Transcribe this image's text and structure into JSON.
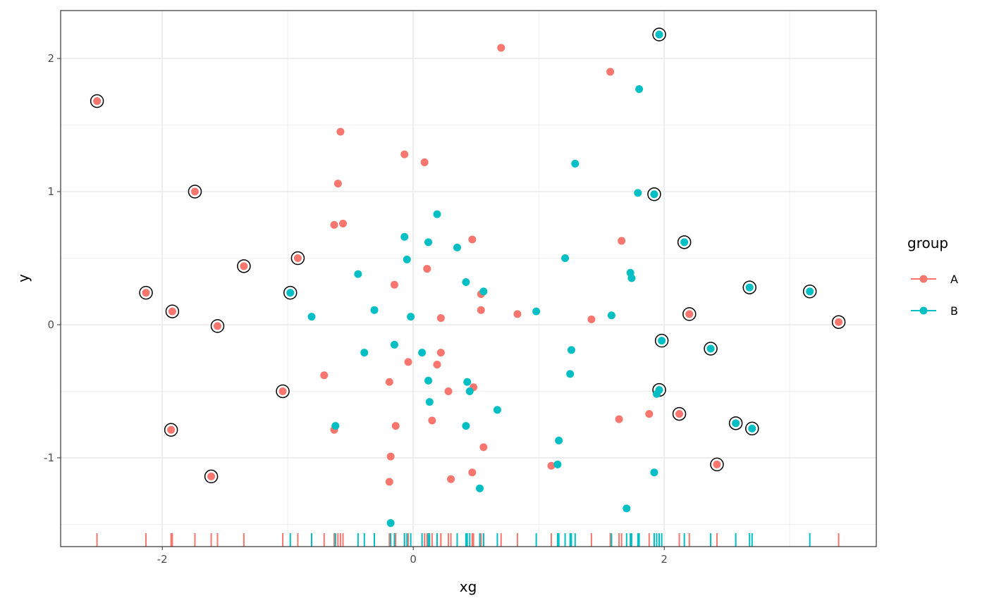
{
  "chart_data": {
    "type": "scatter",
    "xlabel": "xg",
    "ylabel": "y",
    "xlim": [
      -2.81,
      3.69
    ],
    "ylim": [
      -1.667,
      2.36
    ],
    "x_ticks": [
      -2,
      0,
      2
    ],
    "x_tick_labels": [
      "-2",
      "0",
      "2"
    ],
    "y_ticks": [
      -1,
      0,
      1,
      2
    ],
    "y_tick_labels": [
      "-1",
      "0",
      "1",
      "2"
    ],
    "grid": true,
    "rug": "bottom",
    "legend": {
      "title": "group",
      "position": "right"
    },
    "series": [
      {
        "name": "A",
        "color": "#F8766D",
        "points": [
          [
            -0.71,
            -0.38
          ],
          [
            -0.63,
            0.75
          ],
          [
            -0.63,
            -0.79
          ],
          [
            -0.6,
            1.06
          ],
          [
            -0.58,
            1.45
          ],
          [
            -0.56,
            0.76
          ],
          [
            -0.15,
            0.3
          ],
          [
            -0.07,
            1.28
          ],
          [
            -0.04,
            -0.28
          ],
          [
            -0.19,
            -0.43
          ],
          [
            -0.18,
            -0.99
          ],
          [
            -0.19,
            -1.18
          ],
          [
            -0.14,
            -0.76
          ],
          [
            0.09,
            1.22
          ],
          [
            0.11,
            0.42
          ],
          [
            0.15,
            -0.72
          ],
          [
            0.19,
            -0.3
          ],
          [
            0.22,
            0.05
          ],
          [
            0.22,
            -0.21
          ],
          [
            0.28,
            -0.5
          ],
          [
            0.3,
            -1.16
          ],
          [
            0.47,
            0.64
          ],
          [
            0.48,
            -0.47
          ],
          [
            0.47,
            -1.11
          ],
          [
            0.54,
            0.23
          ],
          [
            0.54,
            0.11
          ],
          [
            0.56,
            -0.92
          ],
          [
            0.7,
            2.08
          ],
          [
            0.83,
            0.08
          ],
          [
            1.1,
            -1.06
          ],
          [
            1.42,
            0.04
          ],
          [
            1.57,
            1.9
          ],
          [
            1.64,
            -0.71
          ],
          [
            1.66,
            0.63
          ],
          [
            1.88,
            -0.67
          ]
        ],
        "outlined_points": [
          [
            -2.52,
            1.68
          ],
          [
            -2.13,
            0.24
          ],
          [
            -1.92,
            0.1
          ],
          [
            -1.93,
            -0.79
          ],
          [
            -1.74,
            1.0
          ],
          [
            -1.56,
            -0.01
          ],
          [
            -1.61,
            -1.14
          ],
          [
            -1.35,
            0.44
          ],
          [
            -1.04,
            -0.5
          ],
          [
            -0.92,
            0.5
          ],
          [
            2.12,
            -0.67
          ],
          [
            2.2,
            0.08
          ],
          [
            2.42,
            -1.05
          ],
          [
            3.39,
            0.02
          ]
        ]
      },
      {
        "name": "B",
        "color": "#00BFC4",
        "points": [
          [
            -0.81,
            0.06
          ],
          [
            -0.62,
            -0.76
          ],
          [
            -0.44,
            0.38
          ],
          [
            -0.39,
            -0.21
          ],
          [
            -0.31,
            0.11
          ],
          [
            -0.15,
            -0.15
          ],
          [
            -0.18,
            -1.49
          ],
          [
            -0.07,
            0.66
          ],
          [
            -0.05,
            0.49
          ],
          [
            -0.02,
            0.06
          ],
          [
            0.07,
            -0.21
          ],
          [
            0.12,
            0.62
          ],
          [
            0.12,
            -0.42
          ],
          [
            0.13,
            -0.58
          ],
          [
            0.19,
            0.83
          ],
          [
            0.35,
            0.58
          ],
          [
            0.42,
            0.32
          ],
          [
            0.43,
            -0.43
          ],
          [
            0.45,
            -0.5
          ],
          [
            0.42,
            -0.76
          ],
          [
            0.53,
            -1.23
          ],
          [
            0.56,
            0.25
          ],
          [
            0.67,
            -0.64
          ],
          [
            0.98,
            0.1
          ],
          [
            1.15,
            -1.05
          ],
          [
            1.16,
            -0.87
          ],
          [
            1.21,
            0.5
          ],
          [
            1.25,
            -0.37
          ],
          [
            1.26,
            -0.19
          ],
          [
            1.29,
            1.21
          ],
          [
            1.58,
            0.07
          ],
          [
            1.7,
            -1.38
          ],
          [
            1.73,
            0.39
          ],
          [
            1.74,
            0.35
          ],
          [
            1.79,
            0.99
          ],
          [
            1.8,
            1.77
          ],
          [
            1.92,
            -1.11
          ],
          [
            1.94,
            -0.52
          ]
        ],
        "outlined_points": [
          [
            -0.98,
            0.24
          ],
          [
            1.92,
            0.98
          ],
          [
            1.96,
            2.18
          ],
          [
            1.96,
            -0.49
          ],
          [
            1.98,
            -0.12
          ],
          [
            2.16,
            0.62
          ],
          [
            2.37,
            -0.18
          ],
          [
            2.57,
            -0.74
          ],
          [
            2.68,
            0.28
          ],
          [
            2.7,
            -0.78
          ],
          [
            3.16,
            0.25
          ]
        ]
      }
    ]
  }
}
